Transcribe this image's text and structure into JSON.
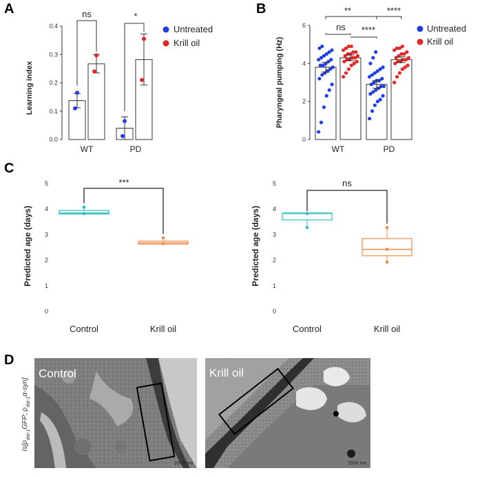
{
  "panels": {
    "A": "A",
    "B": "B",
    "C": "C",
    "D": "D"
  },
  "colors": {
    "untreated": "#1f3fe0",
    "krill": "#e02828",
    "control_box": "#2bbcc6",
    "krill_box": "#f08a4b",
    "em_box": "#000000"
  },
  "legend": {
    "untreated": "Untreated",
    "krill": "Krill oil"
  },
  "chart_data": [
    {
      "panel": "A",
      "type": "bar",
      "ylabel": "Learning index",
      "ylim": [
        0,
        0.4
      ],
      "yticks": [
        "0.0",
        "0.1",
        "0.2",
        "0.3",
        "0.4"
      ],
      "categories": [
        "WT",
        "PD"
      ],
      "series": [
        {
          "name": "Untreated",
          "values": [
            0.137,
            0.04
          ],
          "err": [
            0.025,
            0.04
          ],
          "points": [
            [
              0.165,
              0.11
            ],
            [
              0.065,
              0.012
            ]
          ]
        },
        {
          "name": "Krill oil",
          "values": [
            0.267,
            0.282
          ],
          "err": [
            0.032,
            0.09
          ],
          "points": [
            [
              0.297,
              0.24
            ],
            [
              0.355,
              0.21
            ]
          ]
        }
      ],
      "significance": [
        {
          "label": "ns",
          "category": "WT"
        },
        {
          "label": "*",
          "category": "PD"
        }
      ]
    },
    {
      "panel": "B",
      "type": "bar",
      "ylabel": "Pharyngeal pumping (Hz)",
      "ylim": [
        0,
        6
      ],
      "yticks": [
        "0",
        "2",
        "4",
        "6"
      ],
      "categories": [
        "WT",
        "PD"
      ],
      "series": [
        {
          "name": "Untreated",
          "values": [
            3.8,
            2.9
          ],
          "err": [
            0.25,
            0.2
          ],
          "points": [
            [
              0.4,
              0.9,
              1.7,
              2.3,
              2.6,
              2.9,
              3.2,
              3.4,
              3.5,
              3.6,
              3.7,
              3.8,
              3.9,
              3.9,
              4.0,
              4.1,
              4.2,
              4.2,
              4.3,
              4.4,
              4.5,
              4.6,
              4.7,
              4.8,
              4.9
            ],
            [
              1.1,
              1.5,
              1.8,
              2.0,
              2.1,
              2.3,
              2.4,
              2.5,
              2.6,
              2.7,
              2.8,
              2.8,
              2.9,
              3.0,
              3.1,
              3.1,
              3.2,
              3.3,
              3.4,
              3.5,
              3.6,
              3.7,
              3.8,
              4.0,
              4.3,
              4.6
            ]
          ]
        },
        {
          "name": "Krill oil",
          "values": [
            4.3,
            4.2
          ],
          "err": [
            0.15,
            0.15
          ],
          "points": [
            [
              3.3,
              3.5,
              3.7,
              3.9,
              4.0,
              4.1,
              4.1,
              4.2,
              4.2,
              4.3,
              4.3,
              4.4,
              4.4,
              4.5,
              4.5,
              4.6,
              4.6,
              4.7,
              4.8,
              4.9,
              4.9
            ],
            [
              3.0,
              3.3,
              3.5,
              3.7,
              3.8,
              3.9,
              4.0,
              4.1,
              4.1,
              4.2,
              4.2,
              4.3,
              4.3,
              4.4,
              4.5,
              4.5,
              4.6,
              4.7,
              4.8,
              4.8,
              4.9
            ]
          ]
        }
      ],
      "significance": [
        {
          "label": "ns"
        },
        {
          "label": "****"
        },
        {
          "label": "**"
        },
        {
          "label": "****"
        }
      ]
    },
    {
      "panel": "C-left",
      "type": "box",
      "ylabel": "Predicted age (days)",
      "ylim": [
        0,
        5
      ],
      "yticks": [
        "0",
        "1",
        "2",
        "3",
        "4",
        "5"
      ],
      "categories": [
        "Control",
        "Krill oil"
      ],
      "boxes": [
        {
          "q1": 3.78,
          "median": 3.82,
          "q3": 3.92,
          "min": 3.78,
          "max": 4.05,
          "points": [
            3.8,
            4.05
          ]
        },
        {
          "q1": 2.6,
          "median": 2.65,
          "q3": 2.72,
          "min": 2.6,
          "max": 2.85,
          "points": [
            2.62,
            2.85
          ]
        }
      ],
      "significance": "***"
    },
    {
      "panel": "C-right",
      "type": "box",
      "ylabel": "Predicted age (days)",
      "ylim": [
        0,
        5
      ],
      "yticks": [
        "0",
        "1",
        "2",
        "3",
        "4",
        "5"
      ],
      "categories": [
        "Control",
        "Krill oil"
      ],
      "boxes": [
        {
          "q1": 3.55,
          "median": 3.8,
          "q3": 3.82,
          "min": 3.25,
          "max": 3.82,
          "points": [
            3.25,
            3.8
          ]
        },
        {
          "q1": 2.15,
          "median": 2.4,
          "q3": 2.82,
          "min": 1.9,
          "max": 3.25,
          "points": [
            1.9,
            2.4,
            3.25
          ]
        }
      ],
      "significance": "ns"
    }
  ],
  "panel_d": {
    "ylabel_prefix": "Is[p",
    "ylabel_sub1": "dat-1",
    "ylabel_mid": "GFP; p",
    "ylabel_sub2": "dat-1",
    "ylabel_suffix": "α-syn]",
    "images": [
      {
        "label": "Control",
        "scale": "2000 nm"
      },
      {
        "label": "Krill oil",
        "scale": "2000 nm"
      }
    ]
  }
}
